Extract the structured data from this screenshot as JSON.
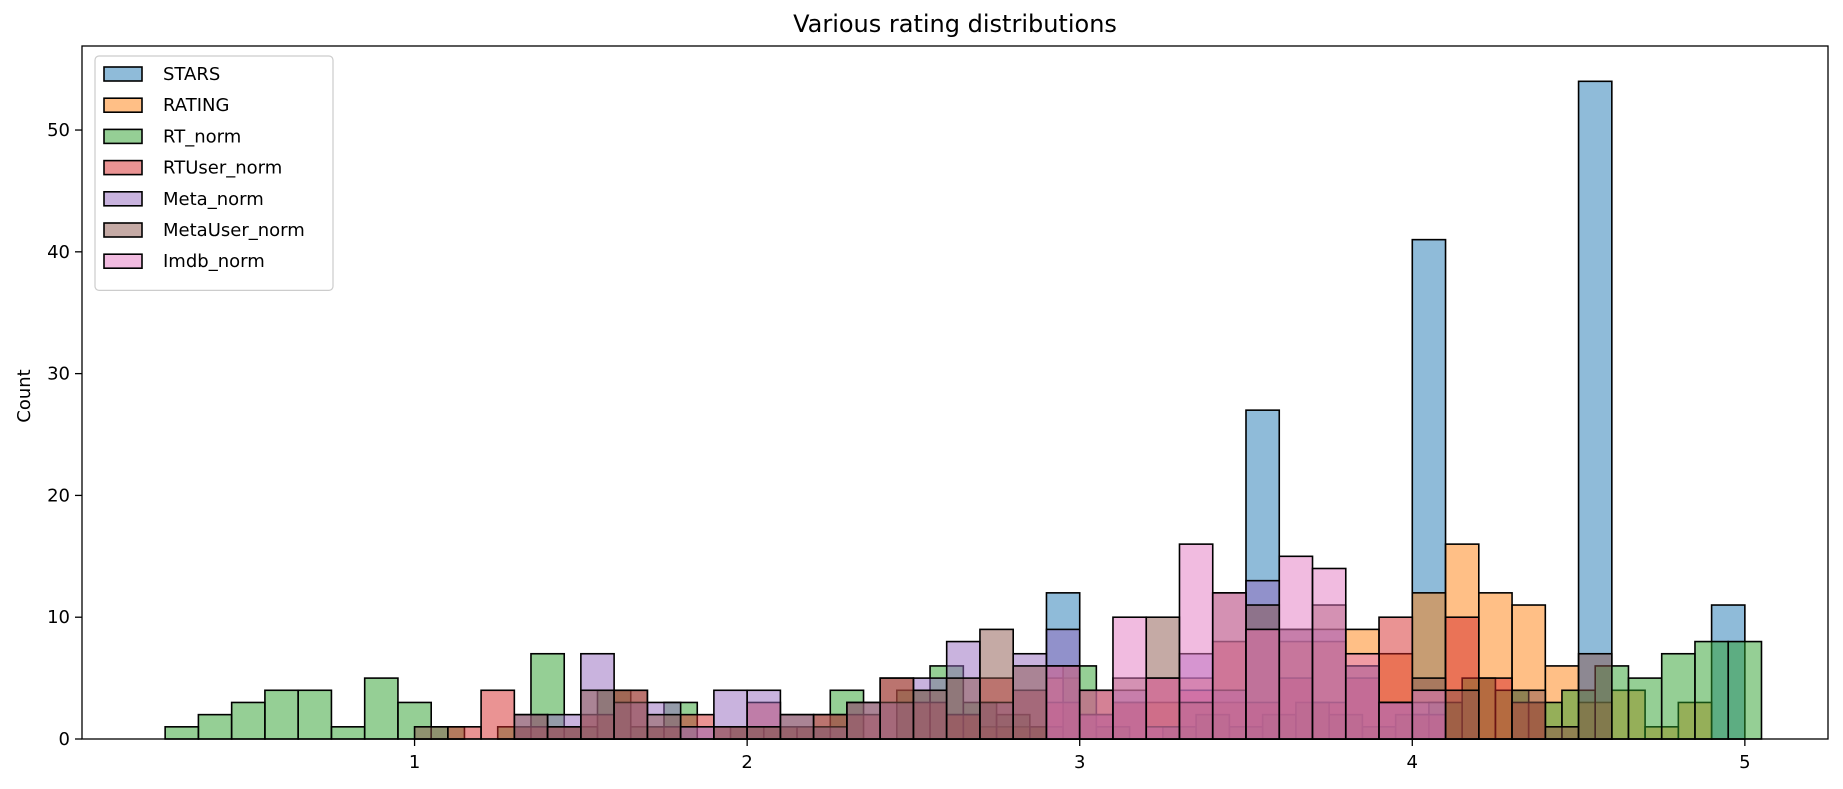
{
  "chart_data": {
    "type": "histogram",
    "title": "Various rating distributions",
    "xlabel": "",
    "ylabel": "Count",
    "xlim": [
      0.0,
      5.25
    ],
    "ylim": [
      0,
      56.9
    ],
    "xticks": [
      1,
      2,
      3,
      4,
      5
    ],
    "yticks": [
      0,
      10,
      20,
      30,
      40,
      50
    ],
    "bin_width": 0.1,
    "legend_location": "upper-left",
    "series": [
      {
        "name": "STARS",
        "color": "#1f77b4",
        "bins": [
          [
            2.9,
            12
          ],
          [
            3.5,
            27
          ],
          [
            4.0,
            41
          ],
          [
            4.5,
            54
          ],
          [
            4.9,
            11
          ]
        ]
      },
      {
        "name": "RATING",
        "color": "#ff7f0e",
        "bins": [
          [
            2.6,
            2
          ],
          [
            2.7,
            1
          ],
          [
            2.8,
            1
          ],
          [
            2.9,
            5
          ],
          [
            3.0,
            4
          ],
          [
            3.1,
            3
          ],
          [
            3.2,
            3
          ],
          [
            3.3,
            5
          ],
          [
            3.4,
            3
          ],
          [
            3.5,
            9
          ],
          [
            3.6,
            8
          ],
          [
            3.7,
            8
          ],
          [
            3.8,
            9
          ],
          [
            3.9,
            7
          ],
          [
            4.0,
            12
          ],
          [
            4.1,
            16
          ],
          [
            4.2,
            12
          ],
          [
            4.3,
            11
          ],
          [
            4.4,
            6
          ],
          [
            4.5,
            3
          ],
          [
            4.6,
            4
          ],
          [
            4.7,
            1
          ],
          [
            4.8,
            3
          ]
        ]
      },
      {
        "name": "RT_norm",
        "color": "#2ca02c",
        "bins": [
          [
            0.25,
            1
          ],
          [
            0.35,
            2
          ],
          [
            0.45,
            3
          ],
          [
            0.55,
            4
          ],
          [
            0.65,
            4
          ],
          [
            0.75,
            1
          ],
          [
            0.85,
            5
          ],
          [
            0.95,
            3
          ],
          [
            1.05,
            1
          ],
          [
            1.15,
            0
          ],
          [
            1.25,
            1
          ],
          [
            1.35,
            7
          ],
          [
            1.45,
            1
          ],
          [
            1.55,
            4
          ],
          [
            1.65,
            1
          ],
          [
            1.75,
            3
          ],
          [
            1.85,
            0
          ],
          [
            1.95,
            1
          ],
          [
            2.05,
            1
          ],
          [
            2.15,
            1
          ],
          [
            2.25,
            4
          ],
          [
            2.35,
            0
          ],
          [
            2.45,
            4
          ],
          [
            2.55,
            6
          ],
          [
            2.65,
            3
          ],
          [
            2.75,
            2
          ],
          [
            2.85,
            1
          ],
          [
            2.95,
            6
          ],
          [
            3.05,
            1
          ],
          [
            3.15,
            0
          ],
          [
            3.25,
            1
          ],
          [
            3.35,
            2
          ],
          [
            3.45,
            1
          ],
          [
            3.55,
            2
          ],
          [
            3.65,
            3
          ],
          [
            3.75,
            2
          ],
          [
            3.85,
            1
          ],
          [
            3.95,
            2
          ],
          [
            4.05,
            3
          ],
          [
            4.15,
            5
          ],
          [
            4.25,
            4
          ],
          [
            4.35,
            3
          ],
          [
            4.45,
            4
          ],
          [
            4.55,
            6
          ],
          [
            4.65,
            5
          ],
          [
            4.75,
            7
          ],
          [
            4.85,
            8
          ],
          [
            4.95,
            8
          ]
        ]
      },
      {
        "name": "RTUser_norm",
        "color": "#d62728",
        "bins": [
          [
            1.1,
            1
          ],
          [
            1.2,
            4
          ],
          [
            1.3,
            1
          ],
          [
            1.4,
            1
          ],
          [
            1.5,
            2
          ],
          [
            1.6,
            4
          ],
          [
            1.7,
            1
          ],
          [
            1.8,
            2
          ],
          [
            1.9,
            1
          ],
          [
            2.0,
            3
          ],
          [
            2.1,
            1
          ],
          [
            2.2,
            2
          ],
          [
            2.3,
            2
          ],
          [
            2.4,
            5
          ],
          [
            2.5,
            3
          ],
          [
            2.6,
            2
          ],
          [
            2.7,
            5
          ],
          [
            2.8,
            4
          ],
          [
            2.9,
            3
          ],
          [
            3.0,
            2
          ],
          [
            3.1,
            3
          ],
          [
            3.2,
            5
          ],
          [
            3.3,
            4
          ],
          [
            3.4,
            8
          ],
          [
            3.5,
            3
          ],
          [
            3.6,
            5
          ],
          [
            3.7,
            3
          ],
          [
            3.8,
            5
          ],
          [
            3.9,
            10
          ],
          [
            4.0,
            2
          ],
          [
            4.1,
            10
          ],
          [
            4.2,
            5
          ],
          [
            4.3,
            3
          ]
        ]
      },
      {
        "name": "Meta_norm",
        "color": "#9467bd",
        "bins": [
          [
            1.3,
            2
          ],
          [
            1.4,
            2
          ],
          [
            1.5,
            7
          ],
          [
            1.6,
            3
          ],
          [
            1.7,
            3
          ],
          [
            1.8,
            1
          ],
          [
            1.9,
            4
          ],
          [
            2.0,
            4
          ],
          [
            2.1,
            2
          ],
          [
            2.2,
            1
          ],
          [
            2.3,
            3
          ],
          [
            2.4,
            3
          ],
          [
            2.5,
            5
          ],
          [
            2.6,
            8
          ],
          [
            2.7,
            3
          ],
          [
            2.8,
            7
          ],
          [
            2.9,
            9
          ],
          [
            3.0,
            2
          ],
          [
            3.1,
            4
          ],
          [
            3.2,
            1
          ],
          [
            3.3,
            7
          ],
          [
            3.4,
            4
          ],
          [
            3.5,
            13
          ],
          [
            3.6,
            9
          ],
          [
            3.7,
            9
          ],
          [
            3.8,
            6
          ],
          [
            3.9,
            3
          ],
          [
            4.0,
            3
          ]
        ]
      },
      {
        "name": "MetaUser_norm",
        "color": "#8c564b",
        "bins": [
          [
            1.0,
            1
          ],
          [
            1.3,
            2
          ],
          [
            1.4,
            1
          ],
          [
            1.5,
            4
          ],
          [
            1.6,
            4
          ],
          [
            1.7,
            2
          ],
          [
            1.9,
            1
          ],
          [
            2.0,
            1
          ],
          [
            2.1,
            2
          ],
          [
            2.2,
            2
          ],
          [
            2.3,
            3
          ],
          [
            2.4,
            5
          ],
          [
            2.5,
            4
          ],
          [
            2.6,
            5
          ],
          [
            2.7,
            9
          ],
          [
            2.8,
            6
          ],
          [
            2.9,
            6
          ],
          [
            3.0,
            4
          ],
          [
            3.1,
            5
          ],
          [
            3.2,
            10
          ],
          [
            3.3,
            3
          ],
          [
            3.4,
            12
          ],
          [
            3.5,
            11
          ],
          [
            3.6,
            9
          ],
          [
            3.7,
            11
          ],
          [
            3.8,
            6
          ],
          [
            3.9,
            3
          ],
          [
            4.0,
            5
          ],
          [
            4.1,
            4
          ],
          [
            4.3,
            4
          ],
          [
            4.4,
            1
          ],
          [
            4.5,
            7
          ]
        ]
      },
      {
        "name": "Imdb_norm",
        "color": "#e377c2",
        "bins": [
          [
            2.9,
            6
          ],
          [
            3.0,
            4
          ],
          [
            3.1,
            10
          ],
          [
            3.2,
            5
          ],
          [
            3.3,
            16
          ],
          [
            3.4,
            12
          ],
          [
            3.5,
            9
          ],
          [
            3.6,
            15
          ],
          [
            3.7,
            14
          ],
          [
            3.8,
            7
          ],
          [
            3.9,
            3
          ],
          [
            4.0,
            4
          ]
        ]
      }
    ]
  }
}
